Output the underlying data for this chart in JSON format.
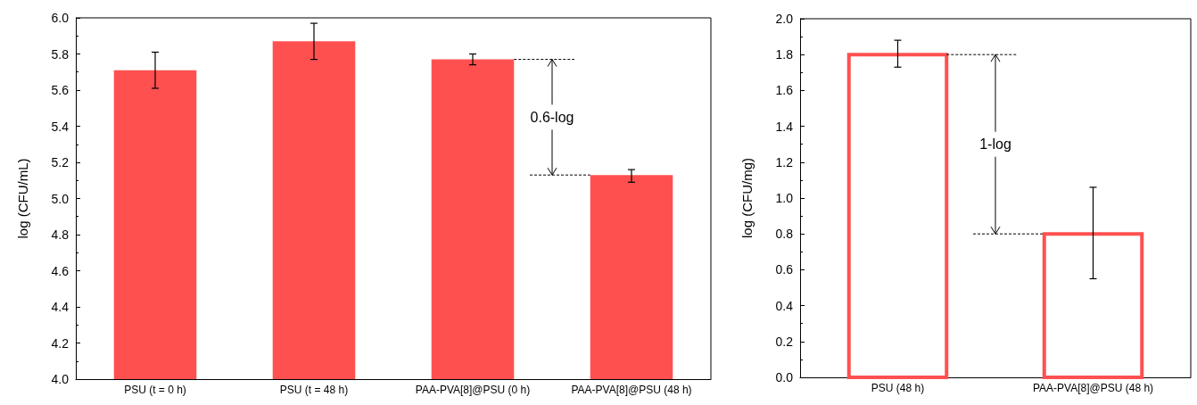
{
  "chart_data": [
    {
      "type": "bar",
      "ylabel": "log (CFU/mL)",
      "categories": [
        "PSU (t = 0 h)",
        "PSU (t = 48 h)",
        "PAA-PVA[8]@PSU (0 h)",
        "PAA-PVA[8]@PSU (48 h)"
      ],
      "values": [
        5.71,
        5.87,
        5.77,
        5.13
      ],
      "color": "#ff5050",
      "errors": [
        [
          5.61,
          5.81
        ],
        [
          5.77,
          5.97
        ],
        [
          5.74,
          5.8
        ],
        [
          5.09,
          5.16
        ]
      ],
      "ylim": [
        4.0,
        6.0
      ],
      "yticks": [
        {
          "value": 4,
          "label": "4.0"
        },
        4.2,
        4.4,
        4.6,
        4.8,
        {
          "value": 5,
          "label": "5.0"
        },
        5.2,
        5.4,
        5.6,
        5.8,
        {
          "value": 6,
          "label": "6.0"
        }
      ],
      "grid": false,
      "annotations": [
        "0.6-log"
      ]
    },
    {
      "type": "bar",
      "ylabel": "log (CFU/mg)",
      "categories": [
        "PSU (48 h)",
        "PAA-PVA[8]@PSU (48 h)"
      ],
      "values": [
        1.8,
        0.8
      ],
      "color": "#ff5050",
      "errors": [
        [
          1.73,
          1.88
        ],
        [
          0.55,
          1.06
        ]
      ],
      "ylim": [
        0.0,
        2.0
      ],
      "yticks": [
        {
          "value": 0,
          "label": "0.0"
        },
        0.2,
        0.4,
        0.6,
        0.8,
        {
          "value": 1,
          "label": "1.0"
        },
        1.2,
        1.4,
        1.6,
        1.8,
        {
          "value": 2,
          "label": "2.0"
        }
      ],
      "grid": false,
      "annotations": [
        "1-log"
      ]
    }
  ]
}
